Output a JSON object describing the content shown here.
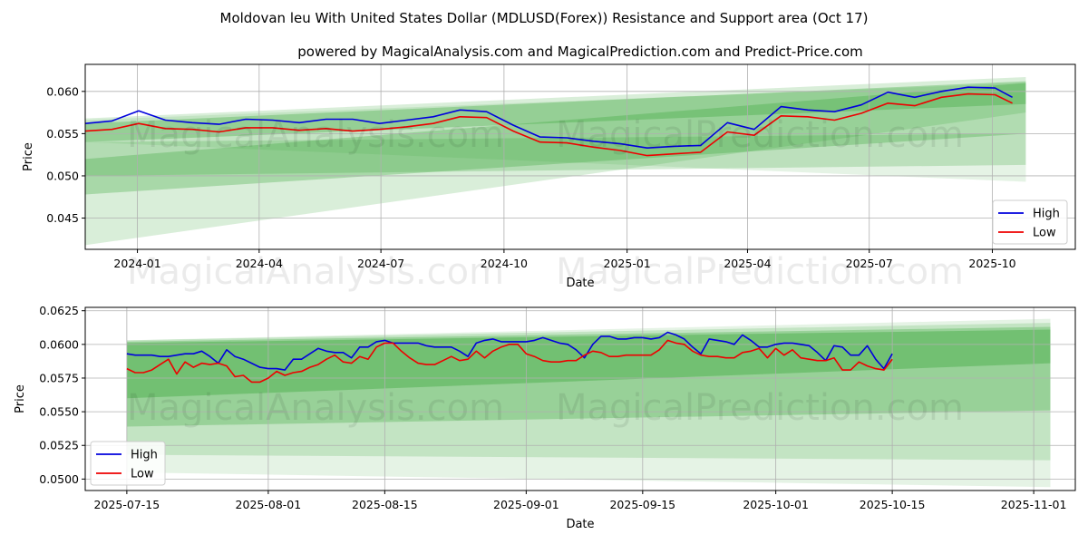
{
  "title": "Moldovan leu With United States Dollar (MDLUSD(Forex)) Resistance and Support area (Oct 17)",
  "subtitle": "powered by MagicalAnalysis.com and MagicalPrediction.com and Predict-Price.com",
  "watermarks": [
    "MagicalAnalysis.com",
    "MagicalPrediction.com"
  ],
  "colors": {
    "high": "#0000dd",
    "low": "#ee0000",
    "band": "#2ca02c"
  },
  "chart_data": [
    {
      "type": "line",
      "title": "Moldovan leu With United States Dollar (MDLUSD(Forex)) Resistance and Support area (Oct 17)",
      "xlabel": "Date",
      "ylabel": "Price",
      "xlim": [
        0,
        740
      ],
      "ylim": [
        0.0413,
        0.0632
      ],
      "x_ticks": [
        {
          "x": 39,
          "label": "2024-01"
        },
        {
          "x": 130,
          "label": "2024-04"
        },
        {
          "x": 221,
          "label": "2024-07"
        },
        {
          "x": 313,
          "label": "2024-10"
        },
        {
          "x": 405,
          "label": "2025-01"
        },
        {
          "x": 495,
          "label": "2025-04"
        },
        {
          "x": 586,
          "label": "2025-07"
        },
        {
          "x": 678,
          "label": "2025-10"
        }
      ],
      "y_ticks": [
        0.045,
        0.05,
        0.055,
        0.06
      ],
      "y_tick_labels": [
        "0.045",
        "0.050",
        "0.055",
        "0.060"
      ],
      "legend": [
        "High",
        "Low"
      ],
      "legend_position": "lower-right",
      "bands": [
        {
          "x": [
            0,
            703
          ],
          "upper": [
            0.0568,
            0.0617
          ],
          "lower": [
            0.0418,
            0.0575
          ],
          "opacity": 0.18
        },
        {
          "x": [
            0,
            703
          ],
          "upper": [
            0.0566,
            0.061
          ],
          "lower": [
            0.054,
            0.0493
          ],
          "opacity": 0.12
        },
        {
          "x": [
            0,
            703
          ],
          "upper": [
            0.054,
            0.055
          ],
          "lower": [
            0.05,
            0.0513
          ],
          "opacity": 0.22
        },
        {
          "x": [
            0,
            703
          ],
          "upper": [
            0.052,
            0.061
          ],
          "lower": [
            0.0478,
            0.055
          ],
          "opacity": 0.28
        },
        {
          "x": [
            0,
            703
          ],
          "upper": [
            0.0562,
            0.0612
          ],
          "lower": [
            0.054,
            0.0585
          ],
          "opacity": 0.3
        }
      ],
      "series": [
        {
          "name": "High",
          "x": [
            0,
            20,
            40,
            60,
            80,
            100,
            120,
            140,
            160,
            180,
            200,
            220,
            240,
            260,
            280,
            300,
            320,
            340,
            360,
            380,
            400,
            420,
            440,
            460,
            480,
            500,
            520,
            540,
            560,
            580,
            600,
            620,
            640,
            660,
            680,
            693
          ],
          "values": [
            0.0562,
            0.0565,
            0.0577,
            0.0566,
            0.0563,
            0.0561,
            0.0567,
            0.0566,
            0.0563,
            0.0567,
            0.0567,
            0.0562,
            0.0566,
            0.057,
            0.0578,
            0.0576,
            0.056,
            0.0546,
            0.0545,
            0.0541,
            0.0538,
            0.0533,
            0.0535,
            0.0536,
            0.0563,
            0.0555,
            0.0582,
            0.0578,
            0.0576,
            0.0584,
            0.0599,
            0.0593,
            0.06,
            0.0605,
            0.0604,
            0.0593
          ]
        },
        {
          "name": "Low",
          "x": [
            0,
            20,
            40,
            60,
            80,
            100,
            120,
            140,
            160,
            180,
            200,
            220,
            240,
            260,
            280,
            300,
            320,
            340,
            360,
            380,
            400,
            420,
            440,
            460,
            480,
            500,
            520,
            540,
            560,
            580,
            600,
            620,
            640,
            660,
            680,
            693
          ],
          "values": [
            0.0553,
            0.0555,
            0.0562,
            0.0556,
            0.0555,
            0.0552,
            0.0557,
            0.0557,
            0.0554,
            0.0556,
            0.0553,
            0.0555,
            0.0558,
            0.0562,
            0.057,
            0.0569,
            0.0553,
            0.054,
            0.0539,
            0.0534,
            0.053,
            0.0524,
            0.0526,
            0.0528,
            0.0552,
            0.0548,
            0.0571,
            0.057,
            0.0566,
            0.0574,
            0.0586,
            0.0583,
            0.0593,
            0.0597,
            0.0596,
            0.0586
          ]
        }
      ]
    },
    {
      "type": "line",
      "xlabel": "Date",
      "ylabel": "Price",
      "xlim": [
        -5,
        114
      ],
      "ylim": [
        0.04915,
        0.06275
      ],
      "x_ticks": [
        {
          "x": 0,
          "label": "2025-07-15"
        },
        {
          "x": 17,
          "label": "2025-08-01"
        },
        {
          "x": 31,
          "label": "2025-08-15"
        },
        {
          "x": 48,
          "label": "2025-09-01"
        },
        {
          "x": 62,
          "label": "2025-09-15"
        },
        {
          "x": 78,
          "label": "2025-10-01"
        },
        {
          "x": 92,
          "label": "2025-10-15"
        },
        {
          "x": 109,
          "label": "2025-11-01"
        }
      ],
      "y_ticks": [
        0.05,
        0.0525,
        0.055,
        0.0575,
        0.06,
        0.0625
      ],
      "y_tick_labels": [
        "0.0500",
        "0.0525",
        "0.0550",
        "0.0575",
        "0.0600",
        "0.0625"
      ],
      "legend": [
        "High",
        "Low"
      ],
      "legend_position": "lower-left",
      "bands": [
        {
          "x": [
            0,
            111
          ],
          "upper": [
            0.0603,
            0.0619
          ],
          "lower": [
            0.0505,
            0.0494
          ],
          "opacity": 0.12
        },
        {
          "x": [
            0,
            111
          ],
          "upper": [
            0.0603,
            0.0616
          ],
          "lower": [
            0.0518,
            0.0514
          ],
          "opacity": 0.18
        },
        {
          "x": [
            0,
            111
          ],
          "upper": [
            0.0602,
            0.0613
          ],
          "lower": [
            0.0539,
            0.0551
          ],
          "opacity": 0.28
        },
        {
          "x": [
            0,
            111
          ],
          "upper": [
            0.0601,
            0.0611
          ],
          "lower": [
            0.056,
            0.0586
          ],
          "opacity": 0.35
        }
      ],
      "series": [
        {
          "name": "High",
          "x": [
            0,
            1,
            2,
            3,
            4,
            5,
            6,
            7,
            8,
            9,
            10,
            11,
            12,
            13,
            14,
            15,
            16,
            17,
            18,
            19,
            20,
            21,
            22,
            23,
            24,
            25,
            26,
            27,
            28,
            29,
            30,
            31,
            32,
            33,
            34,
            35,
            36,
            37,
            38,
            39,
            40,
            41,
            42,
            43,
            44,
            45,
            46,
            47,
            48,
            49,
            50,
            51,
            52,
            53,
            54,
            55,
            56,
            57,
            58,
            59,
            60,
            61,
            62,
            63,
            64,
            65,
            66,
            67,
            68,
            69,
            70,
            71,
            72,
            73,
            74,
            75,
            76,
            77,
            78,
            79,
            80,
            81,
            82,
            83,
            84,
            85,
            86,
            87,
            88,
            89,
            90,
            91,
            92
          ],
          "values": [
            0.0593,
            0.0592,
            0.0592,
            0.0592,
            0.0591,
            0.0591,
            0.0592,
            0.0593,
            0.0593,
            0.0595,
            0.0591,
            0.0586,
            0.0596,
            0.0591,
            0.0589,
            0.0586,
            0.0583,
            0.0582,
            0.0582,
            0.0581,
            0.0589,
            0.0589,
            0.0593,
            0.0597,
            0.0595,
            0.0594,
            0.0594,
            0.059,
            0.0598,
            0.0598,
            0.0602,
            0.0603,
            0.0601,
            0.0601,
            0.0601,
            0.0601,
            0.0599,
            0.0598,
            0.0598,
            0.0598,
            0.0595,
            0.0591,
            0.0601,
            0.0603,
            0.0604,
            0.0602,
            0.0602,
            0.0602,
            0.0602,
            0.0603,
            0.0605,
            0.0603,
            0.0601,
            0.06,
            0.0596,
            0.059,
            0.06,
            0.0606,
            0.0606,
            0.0604,
            0.0604,
            0.0605,
            0.0605,
            0.0604,
            0.0605,
            0.0609,
            0.0607,
            0.0604,
            0.0598,
            0.0593,
            0.0604,
            0.0603,
            0.0602,
            0.06,
            0.0607,
            0.0603,
            0.0598,
            0.0598,
            0.06,
            0.0601,
            0.0601,
            0.06,
            0.0599,
            0.0594,
            0.0588,
            0.0599,
            0.0598,
            0.0592,
            0.0592,
            0.0599,
            0.0589,
            0.0582,
            0.0593
          ]
        },
        {
          "name": "Low",
          "x": [
            0,
            1,
            2,
            3,
            4,
            5,
            6,
            7,
            8,
            9,
            10,
            11,
            12,
            13,
            14,
            15,
            16,
            17,
            18,
            19,
            20,
            21,
            22,
            23,
            24,
            25,
            26,
            27,
            28,
            29,
            30,
            31,
            32,
            33,
            34,
            35,
            36,
            37,
            38,
            39,
            40,
            41,
            42,
            43,
            44,
            45,
            46,
            47,
            48,
            49,
            50,
            51,
            52,
            53,
            54,
            55,
            56,
            57,
            58,
            59,
            60,
            61,
            62,
            63,
            64,
            65,
            66,
            67,
            68,
            69,
            70,
            71,
            72,
            73,
            74,
            75,
            76,
            77,
            78,
            79,
            80,
            81,
            82,
            83,
            84,
            85,
            86,
            87,
            88,
            89,
            90,
            91,
            92
          ],
          "values": [
            0.0582,
            0.0579,
            0.0579,
            0.0581,
            0.0585,
            0.0589,
            0.0578,
            0.0587,
            0.0583,
            0.0586,
            0.0585,
            0.0586,
            0.0584,
            0.0576,
            0.0577,
            0.0572,
            0.0572,
            0.0575,
            0.058,
            0.0577,
            0.0579,
            0.058,
            0.0583,
            0.0585,
            0.0589,
            0.0592,
            0.0587,
            0.0586,
            0.0591,
            0.0589,
            0.0598,
            0.0601,
            0.0601,
            0.0595,
            0.059,
            0.0586,
            0.0585,
            0.0585,
            0.0588,
            0.0591,
            0.0588,
            0.0589,
            0.0595,
            0.059,
            0.0595,
            0.0598,
            0.06,
            0.06,
            0.0593,
            0.0591,
            0.0588,
            0.0587,
            0.0587,
            0.0588,
            0.0588,
            0.0592,
            0.0595,
            0.0594,
            0.0591,
            0.0591,
            0.0592,
            0.0592,
            0.0592,
            0.0592,
            0.0596,
            0.0603,
            0.0601,
            0.06,
            0.0595,
            0.0592,
            0.0591,
            0.0591,
            0.059,
            0.059,
            0.0594,
            0.0595,
            0.0597,
            0.059,
            0.0597,
            0.0592,
            0.0596,
            0.059,
            0.0589,
            0.0588,
            0.0588,
            0.059,
            0.0581,
            0.0581,
            0.0587,
            0.0584,
            0.0582,
            0.0581,
            0.0589
          ]
        }
      ]
    }
  ]
}
